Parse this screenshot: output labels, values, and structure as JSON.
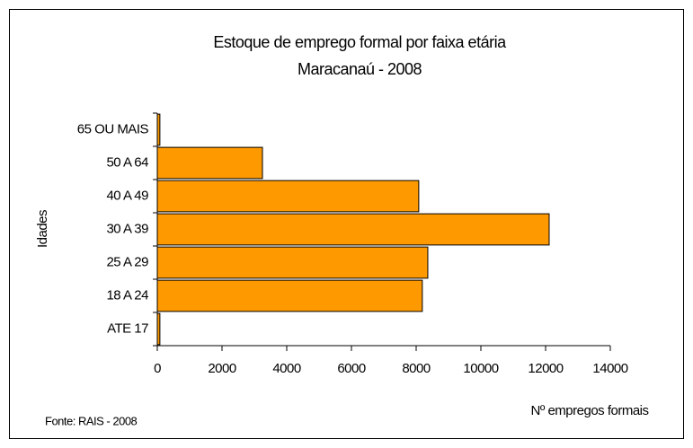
{
  "chart_data": {
    "type": "bar",
    "orientation": "horizontal",
    "title": "Estoque de emprego formal por faixa etária",
    "subtitle": "Maracanaú - 2008",
    "y_label": "Idades",
    "x_label": "Nº empregos formais",
    "source": "Fonte: RAIS - 2008",
    "categories": [
      "ATE 17",
      "18 A 24",
      "25 A 29",
      "30 A 39",
      "40 A 49",
      "50 A 64",
      "65 OU MAIS"
    ],
    "values": [
      80,
      8190,
      8360,
      12110,
      8080,
      3250,
      80
    ],
    "color": "#ff9900",
    "xlim": [
      0,
      14000
    ],
    "xticks": [
      0,
      2000,
      4000,
      6000,
      8000,
      10000,
      12000,
      14000
    ],
    "grid": false
  }
}
